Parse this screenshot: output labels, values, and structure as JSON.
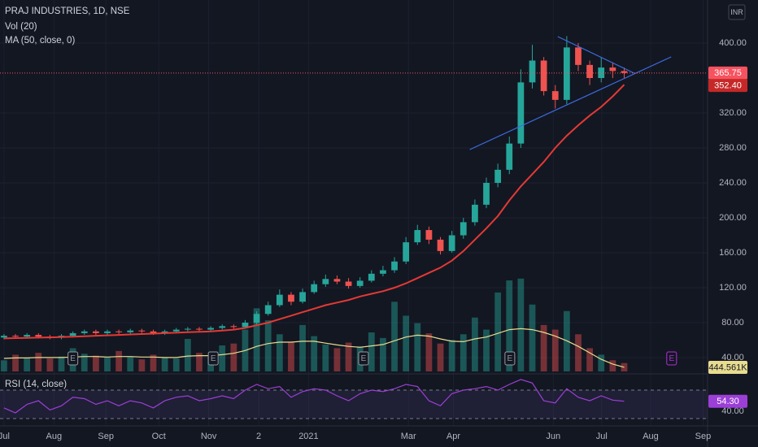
{
  "chart_data": {
    "type": "candlestick",
    "title": "PRAJ INDUSTRIES, 1D, NSE",
    "currency": "INR",
    "x": [
      0,
      0.23,
      0.46,
      0.69,
      0.92,
      1.15,
      1.38,
      1.61,
      1.84,
      2.07,
      2.3,
      2.53,
      2.76,
      2.99,
      3.22,
      3.45,
      3.68,
      3.91,
      4.14,
      4.37,
      4.6,
      4.83,
      5.06,
      5.29,
      5.52,
      5.75,
      5.98,
      6.21,
      6.44,
      6.67,
      6.9,
      7.13,
      7.36,
      7.59,
      7.82,
      8.05,
      8.28,
      8.51,
      8.74,
      8.97,
      9.2,
      9.43,
      9.66,
      9.89,
      10.12,
      10.35,
      10.58,
      10.81,
      11.04,
      11.27,
      11.5,
      11.73,
      11.96,
      12.19,
      12.42
    ],
    "open": [
      63,
      65,
      64,
      66,
      64,
      63,
      65,
      68,
      70,
      68,
      70,
      69,
      71,
      70,
      68,
      70,
      72,
      73,
      72,
      74,
      76,
      75,
      80,
      90,
      100,
      112,
      104,
      115,
      124,
      130,
      127,
      122,
      128,
      136,
      140,
      150,
      172,
      186,
      175,
      162,
      180,
      195,
      215,
      240,
      255,
      285,
      355,
      380,
      345,
      335,
      395,
      375,
      360,
      372,
      368
    ],
    "high": [
      67,
      67,
      68,
      68,
      66,
      67,
      70,
      72,
      72,
      72,
      72,
      73,
      73,
      72,
      72,
      74,
      75,
      75,
      76,
      78,
      78,
      83,
      93,
      104,
      118,
      115,
      119,
      128,
      135,
      134,
      131,
      132,
      140,
      145,
      155,
      178,
      192,
      190,
      178,
      185,
      200,
      221,
      246,
      262,
      293,
      370,
      398,
      384,
      352,
      408,
      400,
      380,
      384,
      378,
      372
    ],
    "low": [
      61,
      62,
      62,
      62,
      61,
      61,
      63,
      66,
      66,
      66,
      67,
      67,
      68,
      66,
      66,
      68,
      70,
      70,
      70,
      72,
      73,
      73,
      78,
      88,
      98,
      100,
      102,
      113,
      121,
      124,
      119,
      120,
      126,
      133,
      137,
      147,
      169,
      170,
      158,
      160,
      176,
      191,
      211,
      235,
      250,
      280,
      348,
      340,
      325,
      330,
      368,
      352,
      355,
      360,
      360
    ],
    "close": [
      65,
      64,
      66,
      64,
      63,
      65,
      68,
      70,
      68,
      70,
      69,
      71,
      70,
      68,
      70,
      72,
      73,
      72,
      74,
      76,
      75,
      80,
      90,
      100,
      112,
      104,
      115,
      124,
      130,
      127,
      122,
      128,
      136,
      140,
      150,
      172,
      186,
      175,
      162,
      180,
      195,
      215,
      240,
      255,
      285,
      355,
      380,
      345,
      335,
      395,
      375,
      360,
      372,
      368,
      365.75
    ],
    "up_color": "#26a69a",
    "down_color": "#ef5350",
    "xlim": [
      -0.08,
      14.09
    ],
    "xticks": [
      {
        "value": 0,
        "label": "Jul"
      },
      {
        "value": 1,
        "label": "Aug"
      },
      {
        "value": 2.04,
        "label": "Sep"
      },
      {
        "value": 3.1,
        "label": "Oct"
      },
      {
        "value": 4.1,
        "label": "Nov"
      },
      {
        "value": 5.1,
        "label": "2"
      },
      {
        "value": 6.1,
        "label": "2021"
      },
      {
        "value": 8.1,
        "label": "Mar"
      },
      {
        "value": 9,
        "label": "Apr"
      },
      {
        "value": 11,
        "label": "Jun"
      },
      {
        "value": 11.97,
        "label": "Jul"
      },
      {
        "value": 12.95,
        "label": "Aug"
      },
      {
        "value": 14,
        "label": "Sep"
      }
    ],
    "ylim": [
      24.2,
      449.3
    ],
    "yticks": [
      {
        "value": 40,
        "label": "40.00"
      },
      {
        "value": 80,
        "label": "80.00"
      },
      {
        "value": 120,
        "label": "120.00"
      },
      {
        "value": 160,
        "label": "160.00"
      },
      {
        "value": 200,
        "label": "200.00"
      },
      {
        "value": 240,
        "label": "240.00"
      },
      {
        "value": 280,
        "label": "280.00"
      },
      {
        "value": 320,
        "label": "320.00"
      },
      {
        "value": 400,
        "label": "400.00"
      }
    ],
    "grid": true,
    "series": [
      {
        "name": "MA (50, close, 0)",
        "color": "#e53935",
        "last_value_label": "352.40",
        "values": [
          62,
          62.3,
          62.6,
          62.9,
          63.2,
          63.5,
          64,
          64.5,
          65,
          65.5,
          66,
          66.5,
          67,
          67.5,
          68,
          68.5,
          69,
          69.5,
          70,
          71,
          72,
          74,
          77,
          80,
          84,
          88,
          92,
          96,
          100,
          103,
          106,
          110,
          113,
          116,
          120,
          125,
          131,
          137,
          143,
          151,
          162,
          175,
          188,
          202,
          220,
          236,
          250,
          264,
          280,
          294,
          306,
          317,
          327,
          339,
          352.4
        ]
      }
    ],
    "trendlines": [
      {
        "color": "#3d6ee6",
        "x": [
          11.09,
          12.62
        ],
        "y": [
          407.4,
          365.6
        ]
      },
      {
        "color": "#3d6ee6",
        "x": [
          9.33,
          13.36
        ],
        "y": [
          278.1,
          384.2
        ]
      }
    ],
    "events": [
      {
        "x": 1.38,
        "label": "E"
      },
      {
        "x": 4.19,
        "label": "E"
      },
      {
        "x": 7.2,
        "label": "E"
      },
      {
        "x": 10.13,
        "label": "E"
      },
      {
        "x": 13.37,
        "label": "E"
      }
    ],
    "volume": {
      "name": "Vol (20)",
      "ylim": [
        0,
        40000000
      ],
      "values": [
        1200000,
        1800000,
        1500000,
        2000000,
        1400000,
        1600000,
        2500000,
        1900000,
        1700000,
        1500000,
        2200000,
        1600000,
        1300000,
        1800000,
        1500000,
        1400000,
        3500000,
        2000000,
        1600000,
        2800000,
        3000000,
        4500000,
        6800000,
        5500000,
        4000000,
        3200000,
        5000000,
        3800000,
        2900000,
        2500000,
        3100000,
        2700000,
        4200000,
        3600000,
        7500000,
        6000000,
        5200000,
        4100000,
        3000000,
        3400000,
        4000000,
        5800000,
        4500000,
        8500000,
        9800000,
        10000000,
        7200000,
        5000000,
        4500000,
        6500000,
        4000000,
        2500000,
        1800000,
        1200000,
        900000
      ],
      "ma": {
        "color": "#e8dc8f",
        "last_value_label": "444.561K",
        "values": [
          1400000,
          1450000,
          1450000,
          1500000,
          1500000,
          1500000,
          1550000,
          1600000,
          1600000,
          1550000,
          1600000,
          1600000,
          1550000,
          1550000,
          1500000,
          1500000,
          1650000,
          1700000,
          1700000,
          1800000,
          1950000,
          2250000,
          2700000,
          3000000,
          3150000,
          3150000,
          3250000,
          3250000,
          3050000,
          2850000,
          2700000,
          2600000,
          2750000,
          2900000,
          3300000,
          3700000,
          3900000,
          3800000,
          3500000,
          3250000,
          3200000,
          3500000,
          3700000,
          4100000,
          4500000,
          4600000,
          4500000,
          4200000,
          3800000,
          3300000,
          2700000,
          2000000,
          1300000,
          800000,
          444561
        ]
      }
    },
    "rsi": {
      "name": "RSI (14, close)",
      "color": "#9c3fd6",
      "ylim": [
        22,
        90.6
      ],
      "bands": [
        30,
        70
      ],
      "last_value_label": "54.30",
      "yticks": [
        {
          "value": 40,
          "label": "40.00"
        }
      ],
      "values": [
        45,
        38,
        50,
        55,
        42,
        48,
        60,
        58,
        50,
        55,
        48,
        55,
        52,
        45,
        55,
        60,
        62,
        55,
        58,
        62,
        58,
        70,
        78,
        72,
        75,
        60,
        68,
        72,
        70,
        62,
        55,
        65,
        70,
        68,
        72,
        78,
        75,
        55,
        48,
        65,
        70,
        72,
        75,
        70,
        78,
        85,
        80,
        55,
        52,
        72,
        60,
        55,
        62,
        56,
        54.3
      ]
    }
  }
}
